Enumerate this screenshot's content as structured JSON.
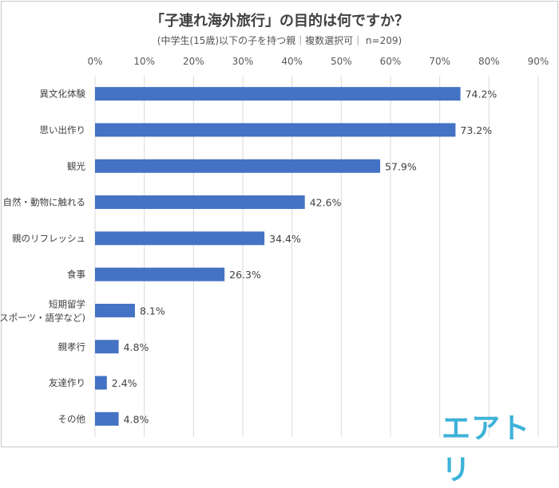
{
  "chart_data": {
    "type": "bar",
    "orientation": "horizontal",
    "title": "「子連れ海外旅行」の目的は何ですか？",
    "subtitle": "(中学生(15歳)以下の子を持つ親｜複数選択可｜ n=209)",
    "categories": [
      [
        "異文化体験"
      ],
      [
        "思い出作り"
      ],
      [
        "観光"
      ],
      [
        "自然・動物に触れる"
      ],
      [
        "親のリフレッシュ"
      ],
      [
        "食事"
      ],
      [
        "短期留学",
        "(スポーツ・語学など)"
      ],
      [
        "親孝行"
      ],
      [
        "友達作り"
      ],
      [
        "その他"
      ]
    ],
    "values": [
      74.2,
      73.2,
      57.9,
      42.6,
      34.4,
      26.3,
      8.1,
      4.8,
      2.4,
      4.8
    ],
    "value_labels": [
      "74.2%",
      "73.2%",
      "57.9%",
      "42.6%",
      "34.4%",
      "26.3%",
      "8.1%",
      "4.8%",
      "2.4%",
      "4.8%"
    ],
    "xlim": [
      0,
      90
    ],
    "xticks": [
      "0%",
      "10%",
      "20%",
      "30%",
      "40%",
      "50%",
      "60%",
      "70%",
      "80%",
      "90%"
    ],
    "xtick_values": [
      0,
      10,
      20,
      30,
      40,
      50,
      60,
      70,
      80,
      90
    ],
    "grid": true,
    "bar_color": "#4472c4"
  },
  "logo_text": "エアトリ"
}
